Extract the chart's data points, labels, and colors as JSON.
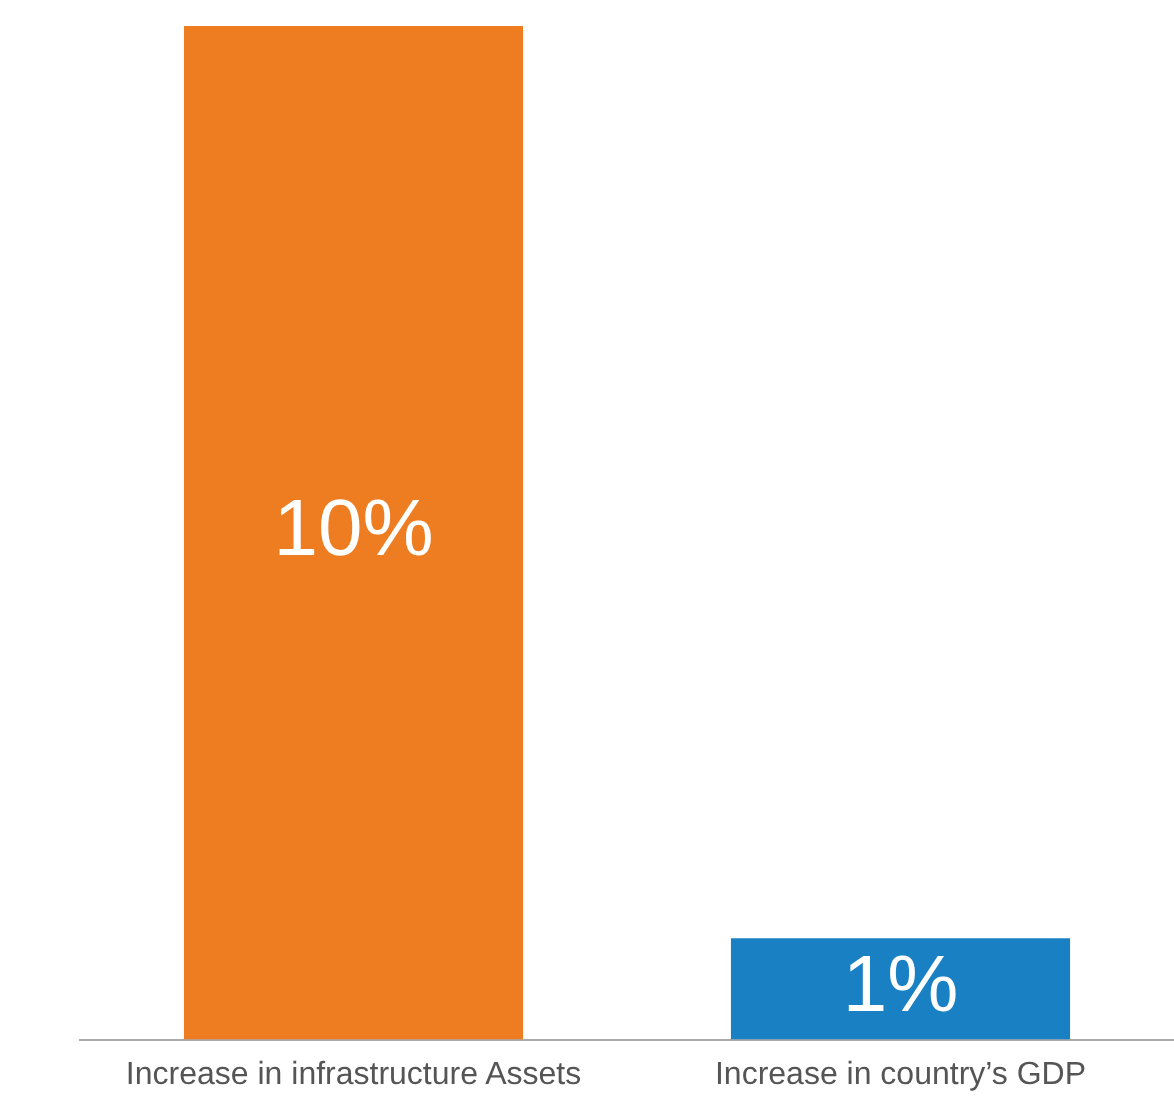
{
  "chart_data": {
    "type": "bar",
    "categories": [
      "Increase in infrastructure Assets",
      "Increase in country’s GDP"
    ],
    "values": [
      10,
      1
    ],
    "colors": [
      "#ee7d22",
      "#1a80c4"
    ],
    "value_labels": [
      "10%",
      "1%"
    ],
    "grid": false,
    "legend": false
  }
}
